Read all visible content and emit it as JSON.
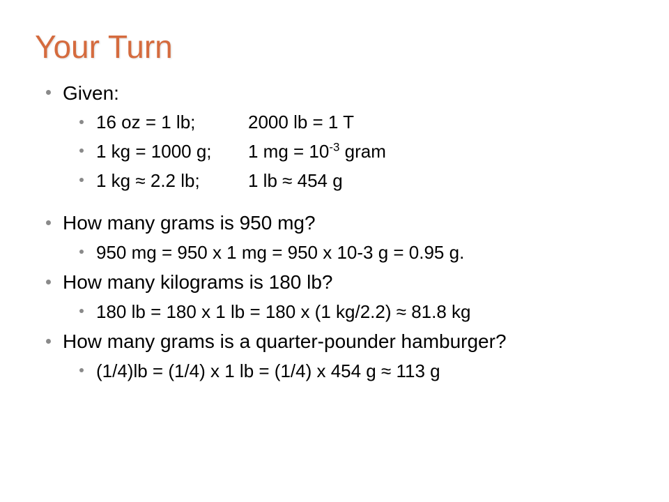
{
  "title": "Your Turn",
  "given_label": "Given:",
  "given_rows": [
    {
      "left": "16 oz = 1 lb;",
      "right": "2000 lb = 1 T"
    },
    {
      "left": "1 kg   = 1000 g;",
      "right_prefix": "1 mg = 10",
      "right_exp": "-3",
      "right_suffix": " gram"
    },
    {
      "left": "1 kg ≈ 2.2 lb;",
      "right": "1 lb ≈ 454 g"
    }
  ],
  "q1": "How many grams is 950 mg?",
  "a1": "950 mg = 950 x 1 mg = 950 x 10-3 g = 0.95 g.",
  "q2": "How many kilograms is 180 lb?",
  "a2": "180 lb = 180 x 1 lb = 180 x (1 kg/2.2) ≈ 81.8 kg",
  "q3": "How many grams is a quarter-pounder hamburger?",
  "a3": "(1/4)lb = (1/4) x 1 lb = (1/4) x 454 g ≈ 113 g",
  "colors": {
    "title": "#d56b3e",
    "bullet": "#8a8a8a",
    "text": "#000000",
    "background": "#ffffff"
  },
  "fontsizes": {
    "title": 46,
    "lvl1": 28,
    "lvl2": 26
  }
}
